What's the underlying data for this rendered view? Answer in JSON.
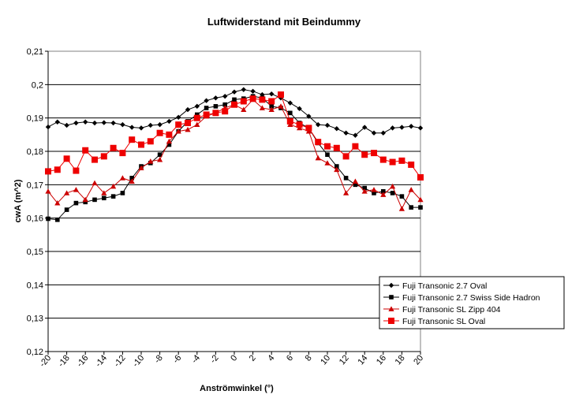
{
  "chart_data": {
    "type": "line",
    "title": "Luftwiderstand mit Beindummy",
    "xlabel": "Anströmwinkel (°)",
    "ylabel": "cwA (m^2)",
    "xlim": [
      -20,
      20
    ],
    "ylim": [
      0.12,
      0.21
    ],
    "xticks": [
      "-20",
      "-18",
      "-16",
      "-14",
      "-12",
      "-10",
      "-8",
      "-6",
      "-4",
      "-2",
      "0",
      "2",
      "4",
      "6",
      "8",
      "10",
      "12",
      "14",
      "16",
      "18",
      "20"
    ],
    "yticks": [
      "0,12",
      "0,13",
      "0,14",
      "0,15",
      "0,16",
      "0,17",
      "0,18",
      "0,19",
      "0,2",
      "0,21"
    ],
    "grid": "horizontal",
    "legend_position": "bottom-right",
    "x": [
      -20,
      -19,
      -18,
      -17,
      -16,
      -15,
      -14,
      -13,
      -12,
      -11,
      -10,
      -9,
      -8,
      -7,
      -6,
      -5,
      -4,
      -3,
      -2,
      -1,
      0,
      1,
      2,
      3,
      4,
      5,
      6,
      7,
      8,
      9,
      10,
      11,
      12,
      13,
      14,
      15,
      16,
      17,
      18,
      19,
      20
    ],
    "series": [
      {
        "name": "Fuji Transonic 2.7 Oval",
        "color": "#000000",
        "marker": "diamond",
        "values": [
          0.1873,
          0.1888,
          0.1878,
          0.1885,
          0.1888,
          0.1885,
          0.1886,
          0.1885,
          0.188,
          0.1872,
          0.187,
          0.1878,
          0.188,
          0.189,
          0.1902,
          0.1925,
          0.1935,
          0.1952,
          0.196,
          0.1965,
          0.1978,
          0.1985,
          0.198,
          0.197,
          0.1972,
          0.196,
          0.1945,
          0.1928,
          0.1905,
          0.188,
          0.1878,
          0.1868,
          0.1855,
          0.1848,
          0.1872,
          0.1855,
          0.1855,
          0.187,
          0.1872,
          0.1875,
          0.187
        ]
      },
      {
        "name": "Fuji Transonic 2.7  Swiss Side Hadron",
        "color": "#000000",
        "marker": "square",
        "values": [
          0.1598,
          0.1595,
          0.1625,
          0.1645,
          0.1648,
          0.1655,
          0.166,
          0.1665,
          0.1675,
          0.172,
          0.1755,
          0.1765,
          0.179,
          0.182,
          0.186,
          0.189,
          0.191,
          0.193,
          0.1935,
          0.194,
          0.1955,
          0.1958,
          0.1965,
          0.196,
          0.1935,
          0.193,
          0.1915,
          0.1885,
          0.187,
          0.1825,
          0.179,
          0.1755,
          0.172,
          0.17,
          0.169,
          0.1675,
          0.168,
          0.1675,
          0.1665,
          0.1632,
          0.1632
        ]
      },
      {
        "name": "Fuji Transonic SL Zipp 404",
        "color": "#cc0000",
        "marker": "triangle",
        "values": [
          0.168,
          0.1645,
          0.1675,
          0.1685,
          0.1655,
          0.1705,
          0.1675,
          0.1695,
          0.172,
          0.171,
          0.175,
          0.177,
          0.1775,
          0.183,
          0.186,
          0.1865,
          0.188,
          0.1905,
          0.1915,
          0.193,
          0.194,
          0.1925,
          0.1955,
          0.193,
          0.1925,
          0.1935,
          0.188,
          0.187,
          0.186,
          0.178,
          0.1765,
          0.1745,
          0.1675,
          0.171,
          0.168,
          0.1685,
          0.167,
          0.1695,
          0.1628,
          0.1685,
          0.1655
        ]
      },
      {
        "name": "Fuji Transonic SL Oval",
        "color": "#ee0000",
        "marker": "bigsquare",
        "values": [
          0.174,
          0.1745,
          0.1778,
          0.1742,
          0.1803,
          0.1775,
          0.1785,
          0.181,
          0.1795,
          0.1835,
          0.182,
          0.183,
          0.1855,
          0.185,
          0.188,
          0.1885,
          0.19,
          0.191,
          0.1915,
          0.192,
          0.194,
          0.195,
          0.1958,
          0.1955,
          0.195,
          0.197,
          0.189,
          0.188,
          0.187,
          0.1828,
          0.1815,
          0.181,
          0.1785,
          0.1815,
          0.179,
          0.1795,
          0.1775,
          0.1768,
          0.1772,
          0.176,
          0.1722
        ]
      }
    ]
  }
}
